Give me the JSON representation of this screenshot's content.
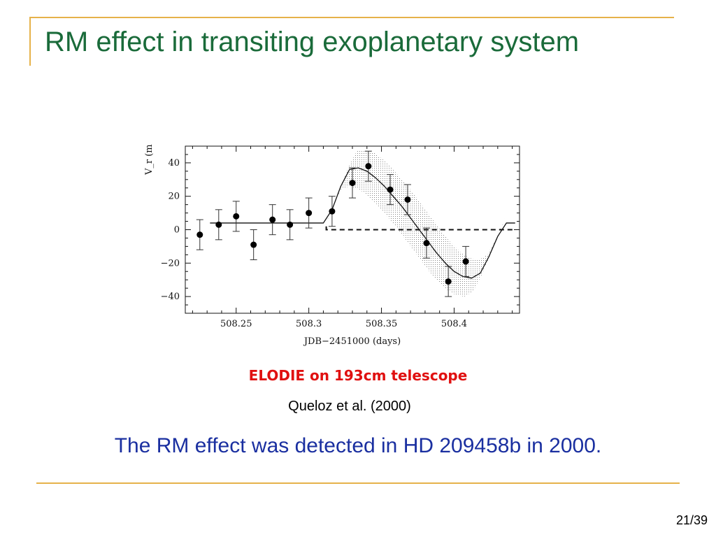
{
  "slide": {
    "title": "RM effect in transiting exoplanetary system",
    "caption_instrument": "ELODIE on 193cm telescope",
    "caption_reference": "Queloz et al. (2000)",
    "statement": "The RM effect was detected in HD 209458b in 2000.",
    "page_number": "21/39"
  },
  "colors": {
    "title": "#1a6b3a",
    "accent_rule": "#e6b24a",
    "instrument_caption": "#e01010",
    "statement": "#1a2fa0"
  },
  "chart_data": {
    "type": "scatter",
    "xlabel": "JDB−2451000 (days)",
    "ylabel": "V_r (m",
    "xlim": [
      508.215,
      508.445
    ],
    "ylim": [
      -50,
      50
    ],
    "xticks": [
      508.25,
      508.3,
      508.35,
      508.4
    ],
    "xtick_labels": [
      "508.25",
      "508.3",
      "508.35",
      "508.4"
    ],
    "yticks": [
      40,
      20,
      0,
      -20,
      -40
    ],
    "ytick_labels": [
      "40",
      "20",
      "0",
      "−20",
      "−40"
    ],
    "grid": false,
    "series": [
      {
        "type": "scatter",
        "x": [
          508.225,
          508.238,
          508.25,
          508.262,
          508.275,
          508.287,
          508.3,
          508.316,
          508.33,
          508.341,
          508.356,
          508.368,
          508.381,
          508.396,
          508.408
        ],
        "y": [
          -3,
          3,
          8,
          -9,
          6,
          3,
          10,
          11,
          28,
          38,
          24,
          18,
          -8,
          -31,
          -19
        ],
        "yerr": [
          9,
          9,
          9,
          9,
          9,
          9,
          9,
          9,
          9,
          9,
          9,
          9,
          9,
          9,
          9
        ]
      },
      {
        "type": "line",
        "style": "solid",
        "x": [
          508.232,
          508.31,
          508.316,
          508.322,
          508.328,
          508.334,
          508.34,
          508.346,
          508.352,
          508.358,
          508.364,
          508.37,
          508.376,
          508.382,
          508.388,
          508.394,
          508.4,
          508.406,
          508.412,
          508.418,
          508.424,
          508.43,
          508.436,
          508.442
        ],
        "y": [
          4,
          4,
          12,
          26,
          36,
          37,
          35,
          31,
          26,
          20,
          14,
          7,
          0,
          -7,
          -14,
          -20,
          -25,
          -28,
          -29,
          -26,
          -16,
          -4,
          4,
          4
        ]
      },
      {
        "type": "line",
        "style": "dashed",
        "x": [
          508.312,
          508.312,
          508.442
        ],
        "y": [
          2,
          0,
          0
        ]
      }
    ]
  }
}
